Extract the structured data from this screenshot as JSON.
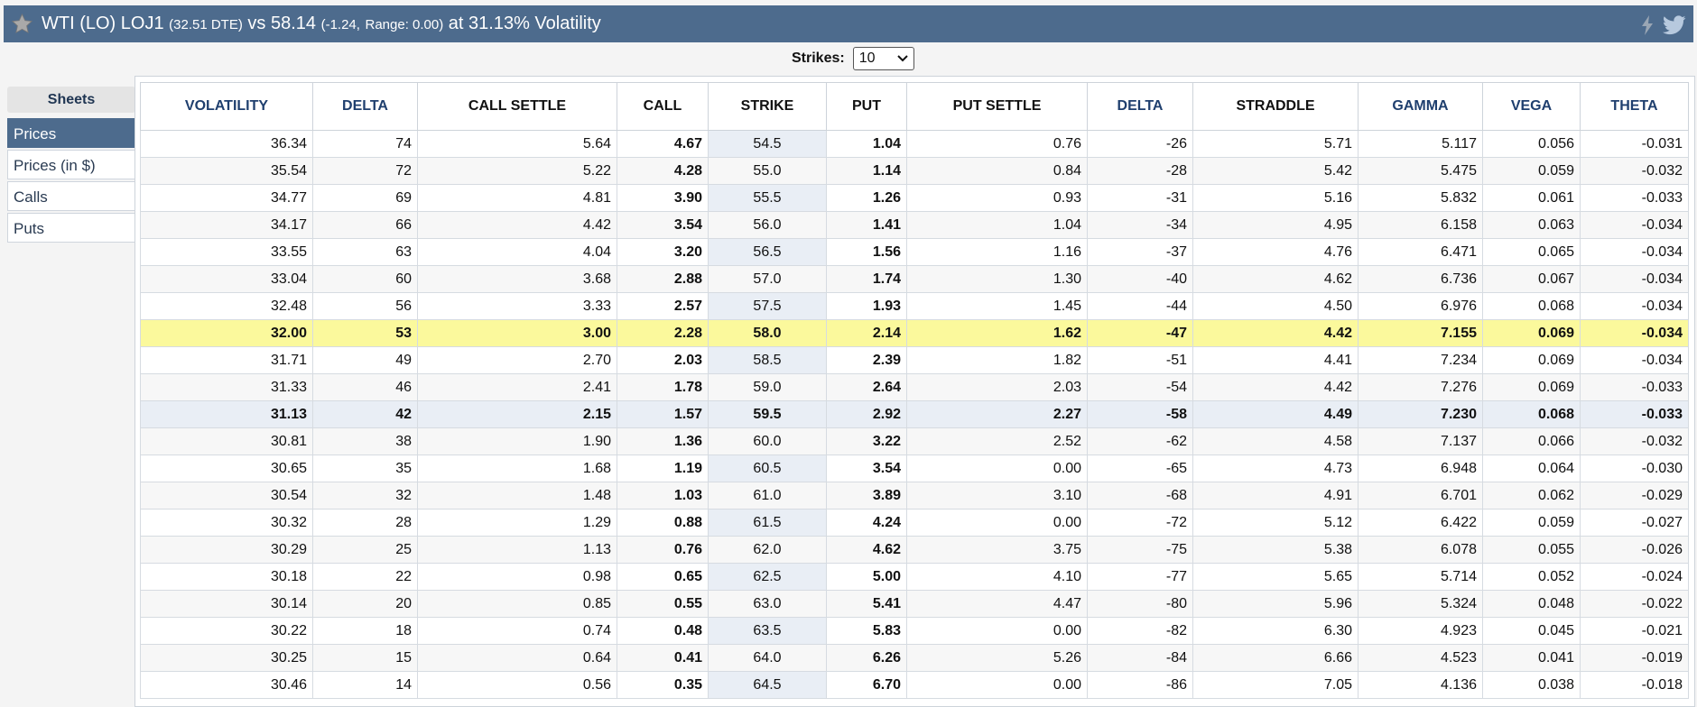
{
  "title": {
    "main": "WTI (LO) LOJ1",
    "dte": "(32.51 DTE)",
    "vs": "vs 58.14",
    "change": "(-1.24,",
    "range": "Range: 0.00)",
    "vol": "at 31.13% Volatility"
  },
  "icons": {
    "star": "star-icon",
    "bolt": "lightning-icon",
    "twitter": "twitter-icon"
  },
  "colors": {
    "header_bg": "#4d6b8d",
    "highlight_row": "#fbf99c",
    "strike_col": "#e9eef5"
  },
  "strikes": {
    "label": "Strikes:",
    "value": "10"
  },
  "sidebar": {
    "heading": "Sheets",
    "items": [
      {
        "label": "Prices",
        "active": true
      },
      {
        "label": "Prices (in $)",
        "active": false
      },
      {
        "label": "Calls",
        "active": false
      },
      {
        "label": "Puts",
        "active": false
      }
    ]
  },
  "table": {
    "headers": [
      "VOLATILITY",
      "DELTA",
      "CALL SETTLE",
      "CALL",
      "STRIKE",
      "PUT",
      "PUT SETTLE",
      "DELTA",
      "STRADDLE",
      "GAMMA",
      "VEGA",
      "THETA"
    ],
    "rows": [
      [
        "36.34",
        "74",
        "5.64",
        "4.67",
        "54.5",
        "1.04",
        "0.76",
        "-26",
        "5.71",
        "5.117",
        "0.056",
        "-0.031"
      ],
      [
        "35.54",
        "72",
        "5.22",
        "4.28",
        "55.0",
        "1.14",
        "0.84",
        "-28",
        "5.42",
        "5.475",
        "0.059",
        "-0.032"
      ],
      [
        "34.77",
        "69",
        "4.81",
        "3.90",
        "55.5",
        "1.26",
        "0.93",
        "-31",
        "5.16",
        "5.832",
        "0.061",
        "-0.033"
      ],
      [
        "34.17",
        "66",
        "4.42",
        "3.54",
        "56.0",
        "1.41",
        "1.04",
        "-34",
        "4.95",
        "6.158",
        "0.063",
        "-0.034"
      ],
      [
        "33.55",
        "63",
        "4.04",
        "3.20",
        "56.5",
        "1.56",
        "1.16",
        "-37",
        "4.76",
        "6.471",
        "0.065",
        "-0.034"
      ],
      [
        "33.04",
        "60",
        "3.68",
        "2.88",
        "57.0",
        "1.74",
        "1.30",
        "-40",
        "4.62",
        "6.736",
        "0.067",
        "-0.034"
      ],
      [
        "32.48",
        "56",
        "3.33",
        "2.57",
        "57.5",
        "1.93",
        "1.45",
        "-44",
        "4.50",
        "6.976",
        "0.068",
        "-0.034"
      ],
      [
        "32.00",
        "53",
        "3.00",
        "2.28",
        "58.0",
        "2.14",
        "1.62",
        "-47",
        "4.42",
        "7.155",
        "0.069",
        "-0.034"
      ],
      [
        "31.71",
        "49",
        "2.70",
        "2.03",
        "58.5",
        "2.39",
        "1.82",
        "-51",
        "4.41",
        "7.234",
        "0.069",
        "-0.034"
      ],
      [
        "31.33",
        "46",
        "2.41",
        "1.78",
        "59.0",
        "2.64",
        "2.03",
        "-54",
        "4.42",
        "7.276",
        "0.069",
        "-0.033"
      ],
      [
        "31.13",
        "42",
        "2.15",
        "1.57",
        "59.5",
        "2.92",
        "2.27",
        "-58",
        "4.49",
        "7.230",
        "0.068",
        "-0.033"
      ],
      [
        "30.81",
        "38",
        "1.90",
        "1.36",
        "60.0",
        "3.22",
        "2.52",
        "-62",
        "4.58",
        "7.137",
        "0.066",
        "-0.032"
      ],
      [
        "30.65",
        "35",
        "1.68",
        "1.19",
        "60.5",
        "3.54",
        "0.00",
        "-65",
        "4.73",
        "6.948",
        "0.064",
        "-0.030"
      ],
      [
        "30.54",
        "32",
        "1.48",
        "1.03",
        "61.0",
        "3.89",
        "3.10",
        "-68",
        "4.91",
        "6.701",
        "0.062",
        "-0.029"
      ],
      [
        "30.32",
        "28",
        "1.29",
        "0.88",
        "61.5",
        "4.24",
        "0.00",
        "-72",
        "5.12",
        "6.422",
        "0.059",
        "-0.027"
      ],
      [
        "30.29",
        "25",
        "1.13",
        "0.76",
        "62.0",
        "4.62",
        "3.75",
        "-75",
        "5.38",
        "6.078",
        "0.055",
        "-0.026"
      ],
      [
        "30.18",
        "22",
        "0.98",
        "0.65",
        "62.5",
        "5.00",
        "4.10",
        "-77",
        "5.65",
        "5.714",
        "0.052",
        "-0.024"
      ],
      [
        "30.14",
        "20",
        "0.85",
        "0.55",
        "63.0",
        "5.41",
        "4.47",
        "-80",
        "5.96",
        "5.324",
        "0.048",
        "-0.022"
      ],
      [
        "30.22",
        "18",
        "0.74",
        "0.48",
        "63.5",
        "5.83",
        "0.00",
        "-82",
        "6.30",
        "4.923",
        "0.045",
        "-0.021"
      ],
      [
        "30.25",
        "15",
        "0.64",
        "0.41",
        "64.0",
        "6.26",
        "5.26",
        "-84",
        "6.66",
        "4.523",
        "0.041",
        "-0.019"
      ],
      [
        "30.46",
        "14",
        "0.56",
        "0.35",
        "64.5",
        "6.70",
        "0.00",
        "-86",
        "7.05",
        "4.136",
        "0.038",
        "-0.018"
      ]
    ]
  }
}
